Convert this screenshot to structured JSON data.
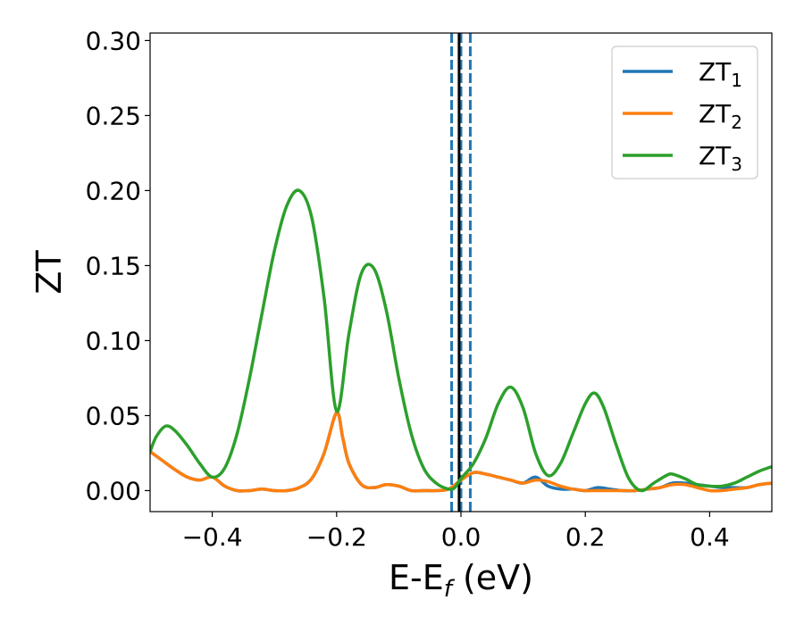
{
  "chart_data": {
    "type": "line",
    "xlabel": "E-E",
    "xlabel_sub": "f",
    "xlabel_unit": " (eV)",
    "ylabel": "ZT",
    "xlim": [
      -0.5,
      0.5
    ],
    "ylim": [
      -0.014,
      0.305
    ],
    "xticks": [
      -0.4,
      -0.2,
      0.0,
      0.2,
      0.4
    ],
    "xtick_labels": [
      "−0.4",
      "−0.2",
      "0.0",
      "0.2",
      "0.4"
    ],
    "yticks": [
      0.0,
      0.05,
      0.1,
      0.15,
      0.2,
      0.25,
      0.3
    ],
    "ytick_labels": [
      "0.00",
      "0.05",
      "0.10",
      "0.15",
      "0.20",
      "0.25",
      "0.30"
    ],
    "legend_position": "top-right",
    "grid": false,
    "vertical_lines": [
      {
        "x": -0.003,
        "color": "#000000",
        "style": "solid"
      },
      {
        "x": -0.015,
        "color": "#1f77b4",
        "style": "dashed"
      },
      {
        "x": 0.0,
        "color": "#1f77b4",
        "style": "dashed"
      },
      {
        "x": 0.015,
        "color": "#1f77b4",
        "style": "dashed"
      }
    ],
    "series": [
      {
        "name": "ZT",
        "name_sub": "1",
        "color": "#1f77b4",
        "x": [
          -0.5,
          -0.48,
          -0.46,
          -0.44,
          -0.42,
          -0.4,
          -0.38,
          -0.36,
          -0.34,
          -0.32,
          -0.3,
          -0.28,
          -0.26,
          -0.24,
          -0.22,
          -0.2,
          -0.19,
          -0.18,
          -0.16,
          -0.14,
          -0.12,
          -0.1,
          -0.08,
          -0.06,
          -0.04,
          -0.02,
          0.0,
          0.02,
          0.04,
          0.06,
          0.08,
          0.1,
          0.12,
          0.14,
          0.16,
          0.18,
          0.2,
          0.22,
          0.24,
          0.26,
          0.28,
          0.3,
          0.32,
          0.34,
          0.36,
          0.38,
          0.4,
          0.42,
          0.44,
          0.46,
          0.48,
          0.5
        ],
        "y": [
          0.026,
          0.02,
          0.014,
          0.009,
          0.007,
          0.009,
          0.003,
          0.0,
          0.0,
          0.001,
          0.0,
          0.0,
          0.002,
          0.008,
          0.025,
          0.052,
          0.035,
          0.018,
          0.004,
          0.002,
          0.004,
          0.003,
          0.0,
          0.0,
          0.0,
          0.001,
          0.007,
          0.012,
          0.011,
          0.009,
          0.007,
          0.005,
          0.009,
          0.003,
          0.001,
          0.001,
          0.0,
          0.002,
          0.001,
          0.0,
          0.0,
          0.001,
          0.002,
          0.005,
          0.005,
          0.004,
          0.003,
          0.002,
          0.002,
          0.002,
          0.004,
          0.005
        ]
      },
      {
        "name": "ZT",
        "name_sub": "2",
        "color": "#ff7f0e",
        "x": [
          -0.5,
          -0.48,
          -0.46,
          -0.44,
          -0.42,
          -0.4,
          -0.38,
          -0.36,
          -0.34,
          -0.32,
          -0.3,
          -0.28,
          -0.26,
          -0.24,
          -0.22,
          -0.2,
          -0.19,
          -0.18,
          -0.16,
          -0.14,
          -0.12,
          -0.1,
          -0.08,
          -0.06,
          -0.04,
          -0.02,
          0.0,
          0.02,
          0.04,
          0.06,
          0.08,
          0.1,
          0.12,
          0.14,
          0.16,
          0.18,
          0.2,
          0.22,
          0.24,
          0.26,
          0.28,
          0.3,
          0.32,
          0.34,
          0.36,
          0.38,
          0.4,
          0.42,
          0.44,
          0.46,
          0.48,
          0.5
        ],
        "y": [
          0.026,
          0.02,
          0.014,
          0.009,
          0.007,
          0.009,
          0.003,
          0.0,
          0.0,
          0.001,
          0.0,
          0.0,
          0.002,
          0.008,
          0.025,
          0.052,
          0.035,
          0.018,
          0.004,
          0.002,
          0.004,
          0.003,
          0.0,
          0.0,
          0.0,
          0.001,
          0.007,
          0.012,
          0.011,
          0.009,
          0.007,
          0.005,
          0.007,
          0.006,
          0.003,
          0.001,
          0.0,
          0.0,
          0.0,
          0.0,
          0.0,
          0.001,
          0.002,
          0.004,
          0.004,
          0.002,
          0.0,
          0.0,
          0.001,
          0.002,
          0.004,
          0.005
        ]
      },
      {
        "name": "ZT",
        "name_sub": "3",
        "color": "#2ca02c",
        "x": [
          -0.5,
          -0.49,
          -0.475,
          -0.46,
          -0.44,
          -0.42,
          -0.4,
          -0.38,
          -0.36,
          -0.34,
          -0.32,
          -0.3,
          -0.28,
          -0.26,
          -0.24,
          -0.22,
          -0.2,
          -0.18,
          -0.16,
          -0.14,
          -0.12,
          -0.1,
          -0.08,
          -0.06,
          -0.04,
          -0.02,
          -0.01,
          0.0,
          0.02,
          0.04,
          0.06,
          0.08,
          0.1,
          0.12,
          0.14,
          0.16,
          0.18,
          0.2,
          0.215,
          0.23,
          0.25,
          0.27,
          0.29,
          0.31,
          0.33,
          0.34,
          0.36,
          0.38,
          0.4,
          0.42,
          0.44,
          0.46,
          0.48,
          0.5
        ],
        "y": [
          0.026,
          0.036,
          0.043,
          0.04,
          0.03,
          0.018,
          0.009,
          0.015,
          0.038,
          0.075,
          0.118,
          0.16,
          0.19,
          0.2,
          0.182,
          0.128,
          0.053,
          0.105,
          0.145,
          0.148,
          0.12,
          0.075,
          0.038,
          0.015,
          0.005,
          0.001,
          0.002,
          0.008,
          0.018,
          0.035,
          0.058,
          0.069,
          0.055,
          0.025,
          0.01,
          0.018,
          0.038,
          0.058,
          0.065,
          0.055,
          0.03,
          0.008,
          0.0,
          0.005,
          0.01,
          0.011,
          0.008,
          0.004,
          0.003,
          0.003,
          0.005,
          0.009,
          0.013,
          0.016
        ]
      }
    ]
  }
}
